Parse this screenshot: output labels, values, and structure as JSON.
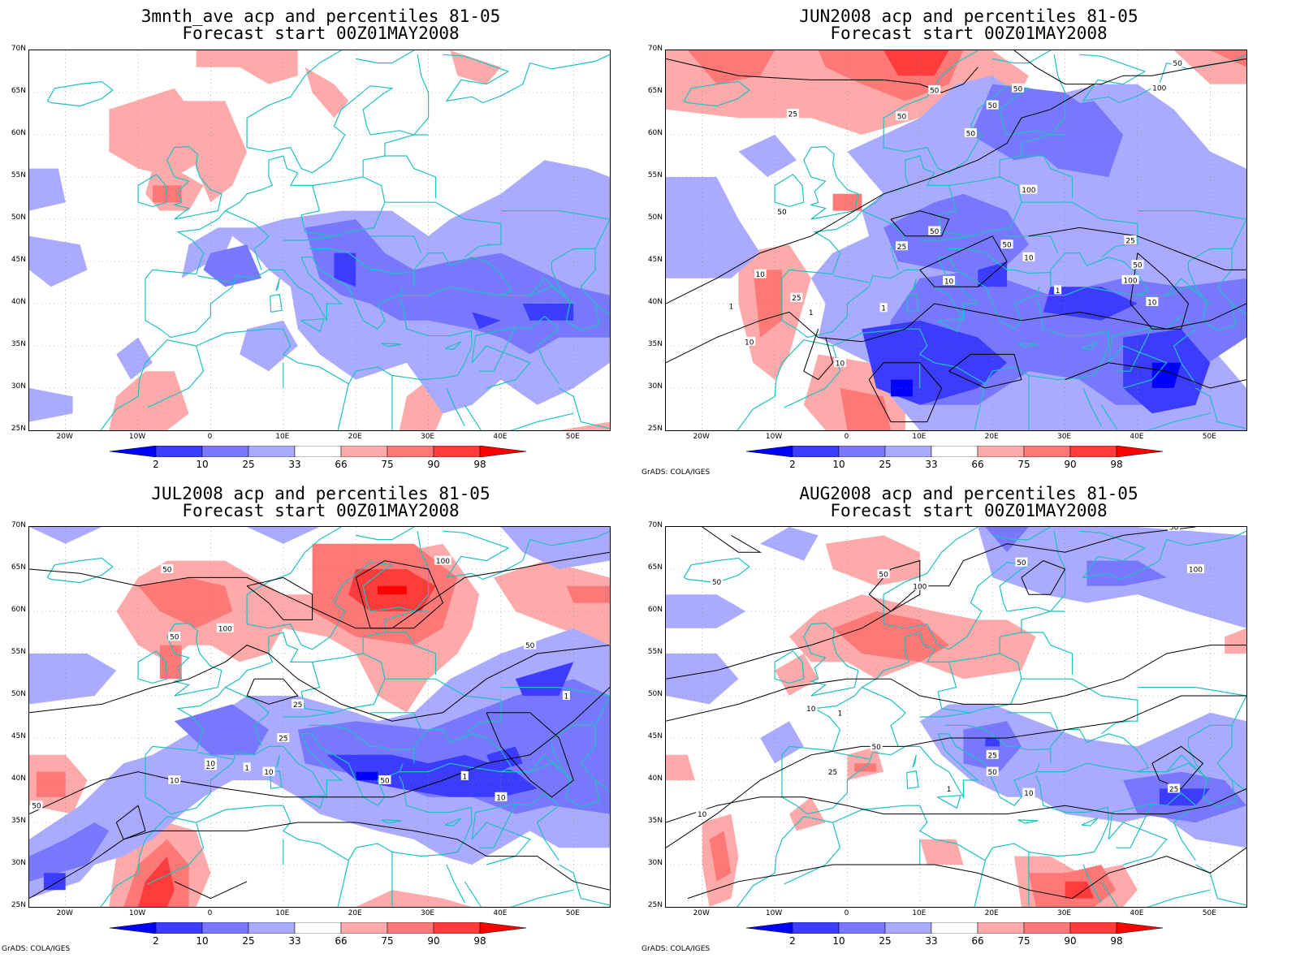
{
  "panels": [
    {
      "title1": "3mnth_ave acp and percentiles 81-05",
      "title2": "Forecast start 00Z01MAY2008",
      "credit": ""
    },
    {
      "title1": "JUN2008 acp and percentiles 81-05",
      "title2": "Forecast start 00Z01MAY2008",
      "credit": "GrADS: COLA/IGES"
    },
    {
      "title1": "JUL2008 acp and percentiles 81-05",
      "title2": "Forecast start 00Z01MAY2008",
      "credit": "GrADS: COLA/IGES"
    },
    {
      "title1": "AUG2008 acp and percentiles 81-05",
      "title2": "Forecast start 00Z01MAY2008",
      "credit": "GrADS: COLA/IGES"
    }
  ],
  "lat_labels": [
    "70N",
    "65N",
    "60N",
    "55N",
    "50N",
    "45N",
    "40N",
    "35N",
    "30N",
    "25N"
  ],
  "lon_labels": [
    "20W",
    "10W",
    "0",
    "10E",
    "20E",
    "30E",
    "40E",
    "50E"
  ],
  "colorbar": {
    "labels": [
      "2",
      "10",
      "25",
      "33",
      "66",
      "75",
      "90",
      "98"
    ],
    "colors": [
      "#0000ff",
      "#3c3cff",
      "#7878ff",
      "#aaaaff",
      "#ffffff",
      "#ffaaaa",
      "#ff7878",
      "#ff3c3c",
      "#ff0000"
    ]
  },
  "contour_labels": {
    "p1": [
      "50",
      "50",
      "50",
      "100",
      "50",
      "50",
      "25",
      "50",
      "50",
      "100",
      "50",
      "50",
      "25",
      "25",
      "50",
      "10",
      "100",
      "10",
      "10",
      "25",
      "10",
      "1",
      "1",
      "10",
      "1",
      "1",
      "10"
    ],
    "p2": [
      "50",
      "100",
      "50",
      "50",
      "100",
      "25",
      "50",
      "25",
      "10",
      "10",
      "50",
      "1",
      "1",
      "1",
      "10",
      "25",
      "10"
    ],
    "p3": [
      "50",
      "100",
      "50",
      "50",
      "50",
      "100",
      "1",
      "50",
      "25",
      "10",
      "10",
      "25",
      "25",
      "50",
      "1",
      "10",
      "100",
      "50",
      "50",
      "1"
    ]
  },
  "coast_color": "#20c0c0",
  "contour_color": "#000000"
}
